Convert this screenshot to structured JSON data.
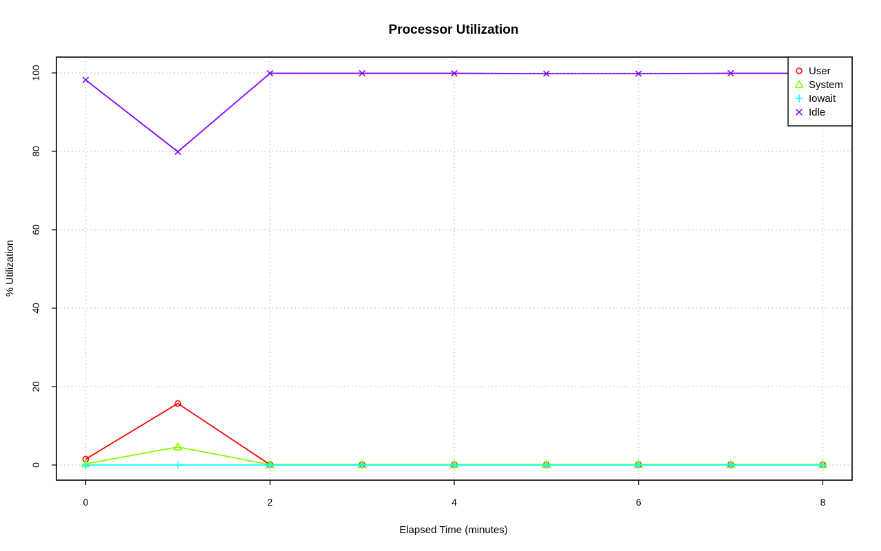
{
  "chart_data": {
    "type": "line",
    "title": "Processor Utilization",
    "xlabel": "Elapsed Time (minutes)",
    "ylabel": "% Utilization",
    "xlim": [
      0,
      8
    ],
    "ylim": [
      0,
      100
    ],
    "xticks": [
      0,
      2,
      4,
      6,
      8
    ],
    "yticks": [
      0,
      20,
      40,
      60,
      80,
      100
    ],
    "grid": true,
    "legend_position": "top-right",
    "x": [
      0,
      1,
      2,
      3,
      4,
      5,
      6,
      7,
      8
    ],
    "series": [
      {
        "name": "User",
        "color": "#ff0000",
        "marker": "circle",
        "values": [
          1.5,
          15.7,
          0.1,
          0.1,
          0.1,
          0.1,
          0.1,
          0.1,
          0.1
        ]
      },
      {
        "name": "System",
        "color": "#80ff00",
        "marker": "triangle",
        "values": [
          0.3,
          4.6,
          0.1,
          0.1,
          0.1,
          0.1,
          0.1,
          0.1,
          0.1
        ]
      },
      {
        "name": "Iowait",
        "color": "#00ffff",
        "marker": "plus",
        "values": [
          0,
          0,
          0,
          0,
          0,
          0,
          0,
          0,
          0
        ]
      },
      {
        "name": "Idle",
        "color": "#8000ff",
        "marker": "cross",
        "values": [
          98.2,
          79.9,
          99.9,
          99.9,
          99.9,
          99.8,
          99.8,
          99.9,
          99.9
        ]
      }
    ]
  }
}
